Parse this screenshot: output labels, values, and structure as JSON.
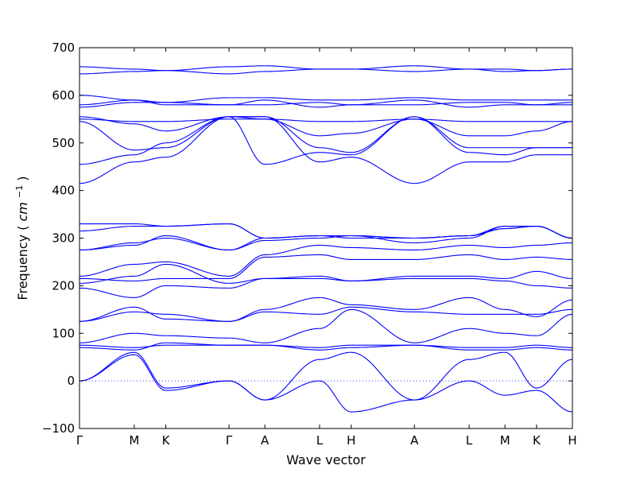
{
  "chart_data": {
    "type": "line",
    "title": "",
    "xlabel": "Wave vector",
    "ylabel": "Frequency",
    "ylabel_unit": "cm",
    "ylabel_unit_exponent": "−1",
    "ylim": [
      -100,
      700
    ],
    "yticks": [
      -100,
      0,
      100,
      200,
      300,
      400,
      500,
      600,
      700
    ],
    "ytick_labels": [
      "−100",
      "0",
      "100",
      "200",
      "300",
      "400",
      "500",
      "600",
      "700"
    ],
    "grid": false,
    "zero_line": {
      "y": 0,
      "style": "dotted"
    },
    "line_color": "#0000ff",
    "xticks": [
      {
        "label": "Γ",
        "x": 0.0
      },
      {
        "label": "M",
        "x": 1.0
      },
      {
        "label": "K",
        "x": 1.577
      },
      {
        "label": "Γ",
        "x": 2.732
      },
      {
        "label": "A",
        "x": 3.387
      },
      {
        "label": "L",
        "x": 4.387
      },
      {
        "label": "H",
        "x": 4.964
      },
      {
        "label": "A",
        "x": 6.119
      },
      {
        "label": "L",
        "x": 7.119
      },
      {
        "label": "M",
        "x": 7.774
      },
      {
        "label": "K",
        "x": 8.351
      },
      {
        "label": "H",
        "x": 9.006
      }
    ],
    "xlim": [
      0,
      9.006
    ],
    "band_values_at_high_symmetry_points": {
      "note_points": [
        "Γ",
        "M",
        "K",
        "Γ",
        "A",
        "L",
        "H",
        "A",
        "L",
        "M",
        "K",
        "H"
      ],
      "series": [
        {
          "values": [
            0,
            55,
            -20,
            0,
            -40,
            0,
            -65,
            -40,
            0,
            -30,
            -20,
            -65
          ]
        },
        {
          "values": [
            0,
            60,
            -15,
            0,
            -40,
            45,
            60,
            -40,
            45,
            60,
            -15,
            45
          ]
        },
        {
          "values": [
            70,
            65,
            80,
            75,
            75,
            65,
            70,
            75,
            65,
            65,
            70,
            65
          ]
        },
        {
          "values": [
            75,
            70,
            75,
            75,
            75,
            70,
            75,
            75,
            70,
            70,
            75,
            70
          ]
        },
        {
          "values": [
            80,
            100,
            95,
            90,
            80,
            110,
            150,
            80,
            110,
            100,
            95,
            140
          ]
        },
        {
          "values": [
            125,
            145,
            140,
            125,
            145,
            140,
            155,
            145,
            140,
            140,
            140,
            150
          ]
        },
        {
          "values": [
            125,
            155,
            130,
            125,
            150,
            175,
            160,
            150,
            175,
            150,
            135,
            170
          ]
        },
        {
          "values": [
            195,
            175,
            200,
            195,
            215,
            215,
            210,
            215,
            215,
            210,
            200,
            195
          ]
        },
        {
          "values": [
            205,
            220,
            245,
            205,
            215,
            220,
            210,
            220,
            220,
            215,
            230,
            215
          ]
        },
        {
          "values": [
            215,
            210,
            215,
            215,
            260,
            265,
            255,
            255,
            265,
            255,
            260,
            255
          ]
        },
        {
          "values": [
            220,
            245,
            250,
            220,
            265,
            285,
            280,
            275,
            285,
            280,
            285,
            290
          ]
        },
        {
          "values": [
            275,
            285,
            305,
            275,
            295,
            300,
            305,
            290,
            300,
            325,
            325,
            300
          ]
        },
        {
          "values": [
            275,
            290,
            300,
            275,
            300,
            305,
            300,
            300,
            305,
            325,
            325,
            300
          ]
        },
        {
          "values": [
            315,
            325,
            325,
            330,
            300,
            305,
            305,
            300,
            305,
            320,
            325,
            300
          ]
        },
        {
          "values": [
            330,
            330,
            325,
            330,
            300,
            305,
            305,
            300,
            305,
            320,
            325,
            300
          ]
        },
        {
          "values": [
            415,
            460,
            470,
            555,
            555,
            460,
            470,
            415,
            460,
            460,
            475,
            475
          ]
        },
        {
          "values": [
            455,
            475,
            500,
            555,
            455,
            480,
            475,
            555,
            480,
            475,
            490,
            490
          ]
        },
        {
          "values": [
            545,
            485,
            490,
            555,
            555,
            490,
            480,
            555,
            490,
            490,
            490,
            490
          ]
        },
        {
          "values": [
            550,
            545,
            545,
            550,
            550,
            545,
            545,
            550,
            545,
            545,
            545,
            545
          ]
        },
        {
          "values": [
            555,
            540,
            525,
            555,
            550,
            515,
            520,
            550,
            515,
            515,
            525,
            545
          ]
        },
        {
          "values": [
            575,
            585,
            585,
            580,
            590,
            575,
            580,
            590,
            575,
            580,
            580,
            580
          ]
        },
        {
          "values": [
            580,
            590,
            585,
            595,
            595,
            590,
            590,
            595,
            590,
            590,
            590,
            590
          ]
        },
        {
          "values": [
            600,
            590,
            580,
            580,
            580,
            585,
            580,
            580,
            585,
            585,
            580,
            585
          ]
        },
        {
          "values": [
            645,
            650,
            652,
            645,
            650,
            655,
            655,
            650,
            655,
            650,
            652,
            655
          ]
        },
        {
          "values": [
            660,
            655,
            652,
            660,
            662,
            655,
            655,
            662,
            655,
            655,
            652,
            655
          ]
        }
      ]
    }
  }
}
